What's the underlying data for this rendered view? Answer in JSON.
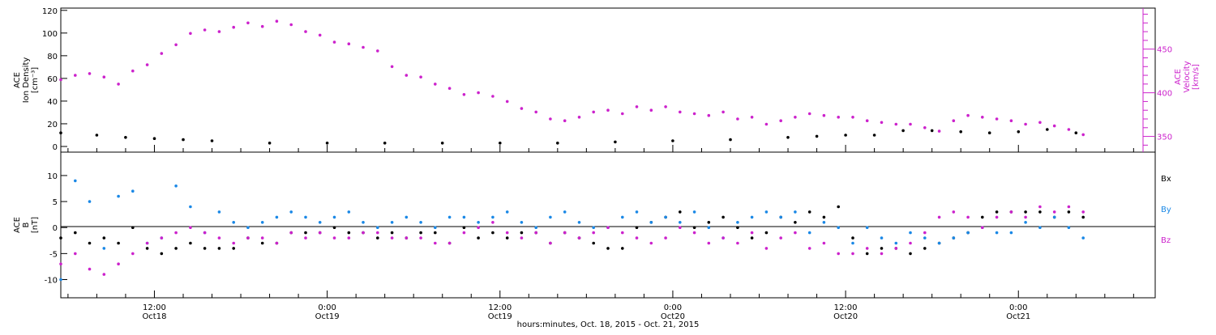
{
  "colors": {
    "ink": "#000000",
    "magenta": "#cc22cc",
    "blue": "#1a88e6"
  },
  "xaxis": {
    "label": "hours:minutes, Oct. 18, 2015 - Oct. 21, 2015",
    "ticks": [
      {
        "hour": 12,
        "time": "12:00",
        "date": "Oct18"
      },
      {
        "hour": 24,
        "time": "0:00",
        "date": "Oct19"
      },
      {
        "hour": 36,
        "time": "12:00",
        "date": "Oct19"
      },
      {
        "hour": 48,
        "time": "0:00",
        "date": "Oct20"
      },
      {
        "hour": 60,
        "time": "12:00",
        "date": "Oct20"
      },
      {
        "hour": 72,
        "time": "0:00",
        "date": "Oct21"
      }
    ]
  },
  "chart_data": [
    {
      "type": "scatter",
      "panel": "top",
      "xlabel": "hours:minutes, Oct. 18, 2015 - Oct. 21, 2015",
      "xlim_hours": [
        5.5,
        81.5
      ],
      "left_axis": {
        "label_lines": [
          "ACE",
          "Ion Density"
        ],
        "unit": "[cm⁻³]",
        "ylim": [
          -5,
          122
        ],
        "ticks": [
          0,
          20,
          40,
          60,
          80,
          100,
          120
        ]
      },
      "right_axis": {
        "label_lines": [
          "ACE",
          "Velocity"
        ],
        "unit": "[km/s]",
        "ylim": [
          332,
          497
        ],
        "ticks": [
          350,
          400,
          450
        ]
      },
      "series": [
        {
          "axis": "left",
          "color": "#000000",
          "x": [
            5.5,
            8,
            10,
            12,
            14,
            16,
            20,
            24,
            28,
            32,
            36,
            40,
            44,
            48,
            52,
            56,
            58,
            60,
            62,
            64,
            66,
            68,
            70,
            72,
            74,
            76
          ],
          "y": [
            12,
            10,
            8,
            7,
            6,
            5,
            3,
            3,
            3,
            3,
            3,
            3,
            4,
            5,
            6,
            8,
            9,
            10,
            10,
            14,
            14,
            13,
            12,
            13,
            15,
            12
          ]
        },
        {
          "axis": "right",
          "color": "#cc22cc",
          "x": [
            5.5,
            6.5,
            7.5,
            8.5,
            9.5,
            10.5,
            11.5,
            12.5,
            13.5,
            14.5,
            15.5,
            16.5,
            17.5,
            18.5,
            19.5,
            20.5,
            21.5,
            22.5,
            23.5,
            24.5,
            25.5,
            26.5,
            27.5,
            28.5,
            29.5,
            30.5,
            31.5,
            32.5,
            33.5,
            34.5,
            35.5,
            36.5,
            37.5,
            38.5,
            39.5,
            40.5,
            41.5,
            42.5,
            43.5,
            44.5,
            45.5,
            46.5,
            47.5,
            48.5,
            49.5,
            50.5,
            51.5,
            52.5,
            53.5,
            54.5,
            55.5,
            56.5,
            57.5,
            58.5,
            59.5,
            60.5,
            61.5,
            62.5,
            63.5,
            64.5,
            65.5,
            66.5,
            67.5,
            68.5,
            69.5,
            70.5,
            71.5,
            72.5,
            73.5,
            74.5,
            75.5,
            76.5
          ],
          "y": [
            415,
            420,
            422,
            418,
            410,
            425,
            432,
            445,
            455,
            468,
            472,
            470,
            475,
            480,
            476,
            482,
            478,
            470,
            466,
            458,
            456,
            452,
            448,
            430,
            420,
            418,
            410,
            405,
            398,
            400,
            396,
            390,
            382,
            378,
            370,
            368,
            372,
            378,
            380,
            376,
            384,
            380,
            384,
            378,
            376,
            374,
            378,
            370,
            372,
            364,
            368,
            372,
            376,
            374,
            372,
            372,
            368,
            366,
            364,
            364,
            360,
            356,
            368,
            374,
            372,
            370,
            368,
            364,
            366,
            362,
            358,
            352
          ]
        }
      ]
    },
    {
      "type": "scatter",
      "panel": "bottom",
      "xlabel": "hours:minutes, Oct. 18, 2015 - Oct. 21, 2015",
      "xlim_hours": [
        5.5,
        81.5
      ],
      "left_axis": {
        "label_lines": [
          "ACE",
          "B"
        ],
        "unit": "[nT]",
        "ylim": [
          -13.5,
          14.5
        ],
        "ticks": [
          -10,
          -5,
          0,
          5,
          10
        ],
        "zero_line": true
      },
      "legend": {
        "placement": "right",
        "entries": [
          {
            "name": "Bx",
            "color": "#000000"
          },
          {
            "name": "By",
            "color": "#1a88e6"
          },
          {
            "name": "Bz",
            "color": "#cc22cc"
          }
        ]
      },
      "series": [
        {
          "name": "Bx",
          "color": "#000000",
          "x": [
            5.5,
            6.5,
            7.5,
            8.5,
            9.5,
            10.5,
            11.5,
            12.5,
            13.5,
            14.5,
            15.5,
            16.5,
            17.5,
            18.5,
            19.5,
            20.5,
            21.5,
            22.5,
            23.5,
            24.5,
            25.5,
            26.5,
            27.5,
            28.5,
            29.5,
            30.5,
            31.5,
            32.5,
            33.5,
            34.5,
            35.5,
            36.5,
            37.5,
            38.5,
            39.5,
            40.5,
            41.5,
            42.5,
            43.5,
            44.5,
            45.5,
            46.5,
            47.5,
            48.5,
            49.5,
            50.5,
            51.5,
            52.5,
            53.5,
            54.5,
            55.5,
            56.5,
            57.5,
            58.5,
            59.5,
            60.5,
            61.5,
            62.5,
            63.5,
            64.5,
            65.5,
            66.5,
            67.5,
            68.5,
            69.5,
            70.5,
            71.5,
            72.5,
            73.5,
            74.5,
            75.5,
            76.5
          ],
          "y": [
            -2,
            -1,
            -3,
            -2,
            -3,
            0,
            -4,
            -5,
            -4,
            -3,
            -4,
            -4,
            -4,
            -2,
            -3,
            -3,
            -1,
            -1,
            -1,
            0,
            -1,
            -1,
            -2,
            -1,
            -2,
            -1,
            -1,
            -3,
            0,
            -2,
            -1,
            -2,
            -1,
            -1,
            -3,
            -1,
            -2,
            -3,
            -4,
            -4,
            0,
            1,
            2,
            3,
            0,
            1,
            2,
            0,
            -2,
            -1,
            2,
            1,
            3,
            2,
            4,
            -2,
            -5,
            -4,
            -4,
            -5,
            -4,
            -3,
            -2,
            -1,
            2,
            3,
            3,
            3,
            3,
            2,
            3,
            2
          ]
        },
        {
          "name": "By",
          "color": "#1a88e6",
          "x": [
            5.5,
            6.5,
            7.5,
            8.5,
            9.5,
            10.5,
            11.5,
            12.5,
            13.5,
            14.5,
            15.5,
            16.5,
            17.5,
            18.5,
            19.5,
            20.5,
            21.5,
            22.5,
            23.5,
            24.5,
            25.5,
            26.5,
            27.5,
            28.5,
            29.5,
            30.5,
            31.5,
            32.5,
            33.5,
            34.5,
            35.5,
            36.5,
            37.5,
            38.5,
            39.5,
            40.5,
            41.5,
            42.5,
            43.5,
            44.5,
            45.5,
            46.5,
            47.5,
            48.5,
            49.5,
            50.5,
            51.5,
            52.5,
            53.5,
            54.5,
            55.5,
            56.5,
            57.5,
            58.5,
            59.5,
            60.5,
            61.5,
            62.5,
            63.5,
            64.5,
            65.5,
            66.5,
            67.5,
            68.5,
            69.5,
            70.5,
            71.5,
            72.5,
            73.5,
            74.5,
            75.5,
            76.5
          ],
          "y": [
            -10,
            9,
            5,
            -4,
            6,
            7,
            -3,
            -2,
            8,
            4,
            -1,
            3,
            1,
            0,
            1,
            2,
            3,
            2,
            1,
            2,
            3,
            1,
            0,
            1,
            2,
            1,
            0,
            2,
            2,
            1,
            2,
            3,
            1,
            0,
            2,
            3,
            1,
            0,
            0,
            2,
            3,
            1,
            2,
            1,
            3,
            0,
            -2,
            1,
            2,
            3,
            2,
            3,
            -1,
            1,
            0,
            -3,
            0,
            -2,
            -3,
            -1,
            -2,
            -3,
            -2,
            -1,
            0,
            -1,
            -1,
            1,
            0,
            2,
            0,
            -2
          ]
        },
        {
          "name": "Bz",
          "color": "#cc22cc",
          "x": [
            5.5,
            6.5,
            7.5,
            8.5,
            9.5,
            10.5,
            11.5,
            12.5,
            13.5,
            14.5,
            15.5,
            16.5,
            17.5,
            18.5,
            19.5,
            20.5,
            21.5,
            22.5,
            23.5,
            24.5,
            25.5,
            26.5,
            27.5,
            28.5,
            29.5,
            30.5,
            31.5,
            32.5,
            33.5,
            34.5,
            35.5,
            36.5,
            37.5,
            38.5,
            39.5,
            40.5,
            41.5,
            42.5,
            43.5,
            44.5,
            45.5,
            46.5,
            47.5,
            48.5,
            49.5,
            50.5,
            51.5,
            52.5,
            53.5,
            54.5,
            55.5,
            56.5,
            57.5,
            58.5,
            59.5,
            60.5,
            61.5,
            62.5,
            63.5,
            64.5,
            65.5,
            66.5,
            67.5,
            68.5,
            69.5,
            70.5,
            71.5,
            72.5,
            73.5,
            74.5,
            75.5,
            76.5
          ],
          "y": [
            -7,
            -5,
            -8,
            -9,
            -7,
            -5,
            -3,
            -2,
            -1,
            0,
            -1,
            -2,
            -3,
            -2,
            -2,
            -3,
            -1,
            -2,
            -1,
            -2,
            -2,
            -1,
            -1,
            -2,
            -2,
            -2,
            -3,
            -3,
            -1,
            0,
            1,
            -1,
            -2,
            -1,
            -3,
            -1,
            -2,
            -1,
            0,
            -1,
            -2,
            -3,
            -2,
            0,
            -1,
            -3,
            -2,
            -3,
            -1,
            -4,
            -2,
            -1,
            -4,
            -3,
            -5,
            -5,
            -4,
            -5,
            -4,
            -3,
            -1,
            2,
            3,
            2,
            0,
            2,
            3,
            2,
            4,
            3,
            4,
            3
          ]
        }
      ]
    }
  ]
}
